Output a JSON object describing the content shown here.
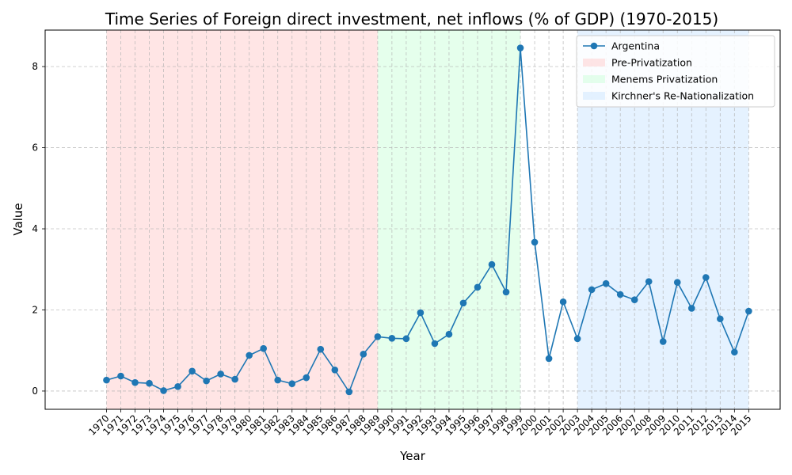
{
  "chart_data": {
    "type": "line",
    "title": "Time Series of Foreign direct investment, net inflows (% of GDP) (1970-2015)",
    "xlabel": "Year",
    "ylabel": "Value",
    "x": [
      1970,
      1971,
      1972,
      1973,
      1974,
      1975,
      1976,
      1977,
      1978,
      1979,
      1980,
      1981,
      1982,
      1983,
      1984,
      1985,
      1986,
      1987,
      1988,
      1989,
      1990,
      1991,
      1992,
      1993,
      1994,
      1995,
      1996,
      1997,
      1998,
      1999,
      2000,
      2001,
      2002,
      2003,
      2004,
      2005,
      2006,
      2007,
      2008,
      2009,
      2010,
      2011,
      2012,
      2013,
      2014,
      2015
    ],
    "x_tick_labels": [
      "1970",
      "1971",
      "1972",
      "1973",
      "1974",
      "1975",
      "1976",
      "1977",
      "1978",
      "1979",
      "1980",
      "1981",
      "1982",
      "1983",
      "1984",
      "1985",
      "1986",
      "1987",
      "1988",
      "1989",
      "1990",
      "1991",
      "1992",
      "1993",
      "1994",
      "1995",
      "1996",
      "1997",
      "1998",
      "1999",
      "2000",
      "2001",
      "2002",
      "2003",
      "2004",
      "2005",
      "2006",
      "2007",
      "2008",
      "2009",
      "2010",
      "2011",
      "2012",
      "2013",
      "2014",
      "2015"
    ],
    "series": [
      {
        "name": "Argentina",
        "color": "#1f77b4",
        "values": [
          0.27,
          0.37,
          0.21,
          0.19,
          0.01,
          0.11,
          0.49,
          0.25,
          0.42,
          0.29,
          0.88,
          1.05,
          0.27,
          0.18,
          0.33,
          1.03,
          0.52,
          -0.02,
          0.91,
          1.34,
          1.3,
          1.29,
          1.93,
          1.17,
          1.4,
          2.17,
          2.56,
          3.12,
          2.44,
          8.46,
          3.67,
          0.8,
          2.2,
          1.29,
          2.5,
          2.65,
          2.38,
          2.25,
          2.7,
          1.22,
          2.68,
          2.04,
          2.8,
          1.78,
          0.96,
          1.97
        ]
      }
    ],
    "shaded_periods": [
      {
        "name": "Pre-Privatization",
        "start": 1970,
        "end": 1989,
        "color": "#ffcccc"
      },
      {
        "name": "Menems Privatization",
        "start": 1989,
        "end": 1999,
        "color": "#ccffd9"
      },
      {
        "name": "Kirchner's Re-Nationalization",
        "start": 2003,
        "end": 2015,
        "color": "#cce5ff"
      }
    ],
    "y_ticks": [
      0,
      2,
      4,
      6,
      8
    ],
    "y_tick_labels": [
      "0",
      "2",
      "4",
      "6",
      "8"
    ],
    "xlim": [
      1965.7,
      2017.2
    ],
    "ylim": [
      -0.45,
      8.9
    ],
    "grid": true,
    "legend_position": "top-right"
  }
}
